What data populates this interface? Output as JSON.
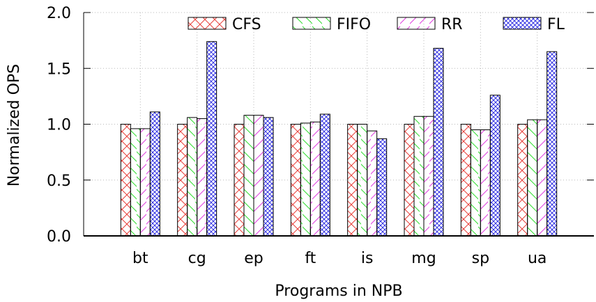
{
  "chart_data": {
    "type": "bar",
    "xlabel": "Programs in NPB",
    "ylabel": "Normalized OPS",
    "ylim": [
      0,
      2.0
    ],
    "yticks": [
      "0.0",
      "0.5",
      "1.0",
      "1.5",
      "2.0"
    ],
    "grid": true,
    "legend_position": "top",
    "categories": [
      "bt",
      "cg",
      "ep",
      "ft",
      "is",
      "mg",
      "sp",
      "ua"
    ],
    "series": [
      {
        "name": "CFS",
        "color": "#e8403a",
        "pattern": "cross",
        "values": [
          1.0,
          1.0,
          1.0,
          1.0,
          1.0,
          1.0,
          1.0,
          1.0
        ]
      },
      {
        "name": "FIFO",
        "color": "#33dd33",
        "pattern": "diag-down",
        "values": [
          0.96,
          1.06,
          1.08,
          1.01,
          1.0,
          1.07,
          0.95,
          1.04
        ]
      },
      {
        "name": "RR",
        "color": "#e040e0",
        "pattern": "diag-up",
        "values": [
          0.96,
          1.05,
          1.08,
          1.02,
          0.94,
          1.07,
          0.95,
          1.04
        ]
      },
      {
        "name": "FL",
        "color": "#2020e0",
        "pattern": "dense-cross",
        "values": [
          1.11,
          1.74,
          1.06,
          1.09,
          0.87,
          1.68,
          1.26,
          1.65
        ]
      }
    ]
  }
}
